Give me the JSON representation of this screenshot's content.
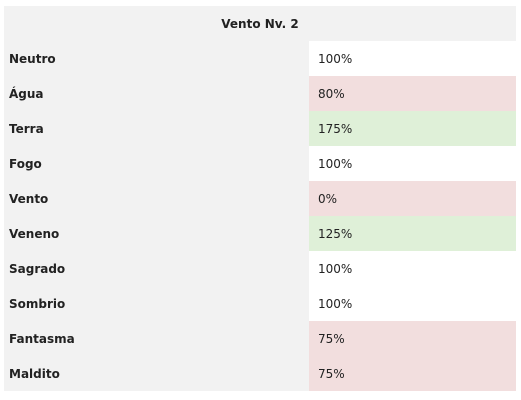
{
  "table": {
    "title": "Vento Nv. 2",
    "rows": [
      {
        "label": "Neutro",
        "value": "100%",
        "status": "neutral"
      },
      {
        "label": "Água",
        "value": "80%",
        "status": "weak"
      },
      {
        "label": "Terra",
        "value": "175%",
        "status": "strong"
      },
      {
        "label": "Fogo",
        "value": "100%",
        "status": "neutral"
      },
      {
        "label": "Vento",
        "value": "0%",
        "status": "weak"
      },
      {
        "label": "Veneno",
        "value": "125%",
        "status": "strong"
      },
      {
        "label": "Sagrado",
        "value": "100%",
        "status": "neutral"
      },
      {
        "label": "Sombrio",
        "value": "100%",
        "status": "neutral"
      },
      {
        "label": "Fantasma",
        "value": "75%",
        "status": "weak"
      },
      {
        "label": "Maldito",
        "value": "75%",
        "status": "weak"
      }
    ]
  },
  "colors": {
    "header_bg": "#f2f2f2",
    "label_bg": "#f2f2f2",
    "neutral": "#ffffff",
    "weak": "#f2dede",
    "strong": "#dff0d8"
  }
}
